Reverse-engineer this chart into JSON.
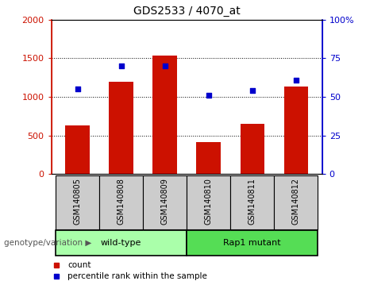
{
  "title": "GDS2533 / 4070_at",
  "categories": [
    "GSM140805",
    "GSM140808",
    "GSM140809",
    "GSM140810",
    "GSM140811",
    "GSM140812"
  ],
  "counts": [
    630,
    1200,
    1540,
    420,
    650,
    1130
  ],
  "percentiles": [
    55,
    70,
    70,
    51,
    54,
    61
  ],
  "bar_color": "#cc1100",
  "dot_color": "#0000cc",
  "left_ylim": [
    0,
    2000
  ],
  "right_ylim": [
    0,
    100
  ],
  "left_yticks": [
    0,
    500,
    1000,
    1500,
    2000
  ],
  "right_yticks": [
    0,
    25,
    50,
    75,
    100
  ],
  "right_yticklabels": [
    "0",
    "25",
    "50",
    "75",
    "100%"
  ],
  "left_yticklabels": [
    "0",
    "500",
    "1000",
    "1500",
    "2000"
  ],
  "groups": [
    {
      "label": "wild-type",
      "indices": [
        0,
        1,
        2
      ],
      "color": "#aaffaa"
    },
    {
      "label": "Rap1 mutant",
      "indices": [
        3,
        4,
        5
      ],
      "color": "#55dd55"
    }
  ],
  "group_label": "genotype/variation",
  "legend_count_label": "count",
  "legend_percentile_label": "percentile rank within the sample",
  "background_color": "#ffffff",
  "tick_label_area_color": "#cccccc"
}
